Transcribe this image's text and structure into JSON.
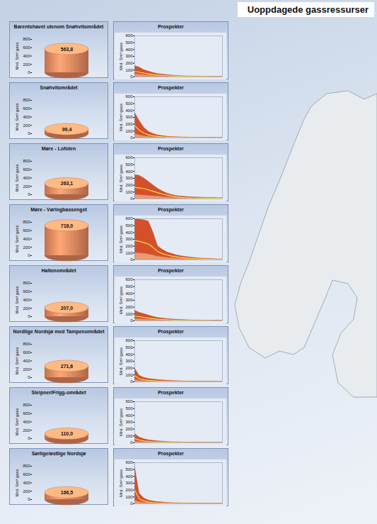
{
  "title": "Uoppdagede gassressurser",
  "chart_data": [
    {
      "type": "bar",
      "title": "Barentshavet utenom Snøhvitområdet",
      "ylabel": "Mrd. Sm³ gass",
      "categories": [
        null
      ],
      "values": [
        563.8
      ],
      "value_labels": [
        "563,8"
      ],
      "data_labels": true,
      "color": "#e8875f",
      "ylim": [
        0,
        800
      ],
      "yticks": [
        0,
        200,
        400,
        600,
        800
      ],
      "tick_labels": "y"
    },
    {
      "type": "area",
      "title": "Prospekter",
      "ylabel": "Mrd. Sm³ gass",
      "x": [
        1,
        2,
        3,
        4,
        5,
        6,
        7,
        8,
        9,
        10,
        11,
        12,
        13,
        14,
        15,
        16,
        17,
        18,
        19,
        20
      ],
      "xlim": [
        1,
        20
      ],
      "ylim": [
        0,
        600
      ],
      "yticks": [
        0,
        100,
        200,
        300,
        400,
        500,
        600
      ],
      "tick_labels": "y",
      "series": [
        {
          "type": "area",
          "color": "#d4502a",
          "values": [
            160,
            140,
            100,
            80,
            60,
            45,
            35,
            28,
            22,
            18,
            14,
            11,
            9,
            7,
            6,
            5,
            4,
            3,
            3,
            2
          ]
        },
        {
          "type": "area",
          "color": "#eb9a72",
          "values": [
            40,
            35,
            28,
            22,
            18,
            14,
            11,
            9,
            7,
            6,
            5,
            4,
            3,
            3,
            2,
            2,
            1,
            1,
            1,
            1
          ]
        },
        {
          "type": "line",
          "color": "#ffd84a",
          "values": [
            80,
            70,
            55,
            45,
            35,
            28,
            22,
            18,
            14,
            11,
            9,
            7,
            6,
            5,
            4,
            3,
            3,
            2,
            2,
            1
          ]
        }
      ]
    },
    {
      "type": "bar",
      "title": "Snøhvitområdet",
      "ylabel": "Mrd. Sm³ gass",
      "categories": [
        null
      ],
      "values": [
        99.4
      ],
      "value_labels": [
        "99,4"
      ],
      "data_labels": true,
      "color": "#e8875f",
      "ylim": [
        0,
        800
      ],
      "yticks": [
        0,
        200,
        400,
        600,
        800
      ],
      "tick_labels": "y"
    },
    {
      "type": "area",
      "title": "Prospekter",
      "ylabel": "Mrd. Sm³ gass",
      "x": [
        1,
        2,
        3,
        4,
        5,
        6,
        7,
        8,
        9,
        10,
        11,
        12,
        13,
        14,
        15,
        16,
        17,
        18,
        19,
        20
      ],
      "xlim": [
        1,
        20
      ],
      "ylim": [
        0,
        600
      ],
      "yticks": [
        0,
        100,
        200,
        300,
        400,
        500,
        600
      ],
      "tick_labels": "y",
      "series": [
        {
          "type": "area",
          "color": "#d4502a",
          "values": [
            370,
            250,
            150,
            90,
            60,
            40,
            28,
            20,
            15,
            12,
            10,
            8,
            6,
            5,
            4,
            3,
            3,
            2,
            2,
            2
          ]
        },
        {
          "type": "area",
          "color": "#eb9a72",
          "values": [
            60,
            40,
            25,
            18,
            12,
            9,
            7,
            5,
            4,
            3,
            3,
            2,
            2,
            1,
            1,
            1,
            1,
            1,
            1,
            1
          ]
        },
        {
          "type": "line",
          "color": "#ffd84a",
          "values": [
            180,
            110,
            70,
            45,
            30,
            22,
            16,
            12,
            9,
            7,
            6,
            5,
            4,
            3,
            3,
            2,
            2,
            1,
            1,
            1
          ]
        }
      ]
    },
    {
      "type": "bar",
      "title": "Møre - Lofoten",
      "ylabel": "Mrd. Sm³ gass",
      "categories": [
        null
      ],
      "values": [
        263.1
      ],
      "value_labels": [
        "263,1"
      ],
      "data_labels": true,
      "color": "#e8875f",
      "ylim": [
        0,
        800
      ],
      "yticks": [
        0,
        200,
        400,
        600,
        800
      ],
      "tick_labels": "y"
    },
    {
      "type": "area",
      "title": "Prospekter",
      "ylabel": "Mrd. Sm³ gass",
      "x": [
        1,
        2,
        3,
        4,
        5,
        6,
        7,
        8,
        9,
        10,
        11,
        12,
        13,
        14,
        15,
        16,
        17,
        18,
        19,
        20
      ],
      "xlim": [
        1,
        20
      ],
      "ylim": [
        0,
        600
      ],
      "yticks": [
        0,
        100,
        200,
        300,
        400,
        500,
        600
      ],
      "tick_labels": "y",
      "series": [
        {
          "type": "area",
          "color": "#d4502a",
          "values": [
            350,
            340,
            300,
            250,
            200,
            150,
            110,
            80,
            60,
            45,
            35,
            30,
            25,
            22,
            20,
            18,
            16,
            15,
            14,
            13
          ]
        },
        {
          "type": "area",
          "color": "#eb9a72",
          "values": [
            60,
            55,
            50,
            45,
            40,
            35,
            28,
            22,
            17,
            13,
            10,
            8,
            7,
            6,
            5,
            5,
            4,
            4,
            4,
            4
          ]
        },
        {
          "type": "line",
          "color": "#ffd84a",
          "values": [
            170,
            160,
            150,
            130,
            110,
            90,
            70,
            55,
            40,
            30,
            22,
            18,
            15,
            13,
            12,
            11,
            10,
            9,
            9,
            8
          ]
        }
      ]
    },
    {
      "type": "bar",
      "title": "Møre - Vøringbassenget",
      "ylabel": "Mrd. Sm³ gass",
      "categories": [
        null
      ],
      "values": [
        718.0
      ],
      "value_labels": [
        "718,0"
      ],
      "data_labels": true,
      "color": "#e8875f",
      "ylim": [
        0,
        800
      ],
      "yticks": [
        0,
        200,
        400,
        600,
        800
      ],
      "tick_labels": "y"
    },
    {
      "type": "area",
      "title": "Prospekter",
      "ylabel": "Mrd. Sm³ gass",
      "x": [
        1,
        2,
        3,
        4,
        5,
        6,
        7,
        8,
        9,
        10,
        11,
        12,
        13,
        14,
        15,
        16,
        17,
        18,
        19,
        20
      ],
      "xlim": [
        1,
        20
      ],
      "ylim": [
        0,
        600
      ],
      "yticks": [
        0,
        100,
        200,
        300,
        400,
        500,
        600
      ],
      "tick_labels": "y",
      "series": [
        {
          "type": "area",
          "color": "#d4502a",
          "values": [
            600,
            590,
            580,
            560,
            400,
            200,
            150,
            110,
            90,
            70,
            55,
            45,
            35,
            28,
            22,
            18,
            15,
            12,
            10,
            8
          ]
        },
        {
          "type": "area",
          "color": "#eb9a72",
          "values": [
            100,
            95,
            90,
            80,
            65,
            50,
            40,
            32,
            26,
            21,
            17,
            14,
            11,
            9,
            7,
            6,
            5,
            4,
            3,
            3
          ]
        },
        {
          "type": "line",
          "color": "#ffd84a",
          "values": [
            280,
            270,
            250,
            230,
            180,
            120,
            90,
            70,
            55,
            45,
            35,
            28,
            22,
            18,
            14,
            11,
            9,
            7,
            6,
            5
          ]
        }
      ]
    },
    {
      "type": "bar",
      "title": "Haltenområdet",
      "ylabel": "Mrd. Sm³ gass",
      "categories": [
        null
      ],
      "values": [
        207.0
      ],
      "value_labels": [
        "207,0"
      ],
      "data_labels": true,
      "color": "#e8875f",
      "ylim": [
        0,
        800
      ],
      "yticks": [
        0,
        200,
        400,
        600,
        800
      ],
      "tick_labels": "y"
    },
    {
      "type": "area",
      "title": "Prospekter",
      "ylabel": "Mrd. Sm³ gass",
      "x": [
        1,
        2,
        3,
        4,
        5,
        6,
        7,
        8,
        9,
        10,
        11,
        12,
        13,
        14,
        15,
        16,
        17,
        18,
        19,
        20
      ],
      "xlim": [
        1,
        20
      ],
      "ylim": [
        0,
        600
      ],
      "yticks": [
        0,
        100,
        200,
        300,
        400,
        500,
        600
      ],
      "tick_labels": "y",
      "series": [
        {
          "type": "area",
          "color": "#d4502a",
          "values": [
            150,
            120,
            100,
            80,
            60,
            45,
            35,
            28,
            22,
            18,
            15,
            12,
            10,
            8,
            7,
            6,
            5,
            4,
            4,
            3
          ]
        },
        {
          "type": "area",
          "color": "#eb9a72",
          "values": [
            30,
            25,
            21,
            17,
            14,
            11,
            9,
            7,
            6,
            5,
            4,
            3,
            3,
            2,
            2,
            2,
            1,
            1,
            1,
            1
          ]
        },
        {
          "type": "line",
          "color": "#ffd84a",
          "values": [
            70,
            60,
            50,
            40,
            32,
            25,
            20,
            16,
            13,
            10,
            8,
            7,
            6,
            5,
            4,
            3,
            3,
            2,
            2,
            2
          ]
        }
      ]
    },
    {
      "type": "bar",
      "title": "Nordlige Nordsjø med Tampenområdet",
      "ylabel": "Mrd. Sm³ gass",
      "categories": [
        null
      ],
      "values": [
        271.6
      ],
      "value_labels": [
        "271,6"
      ],
      "data_labels": true,
      "color": "#e8875f",
      "ylim": [
        0,
        800
      ],
      "yticks": [
        0,
        200,
        400,
        600,
        800
      ],
      "tick_labels": "y"
    },
    {
      "type": "area",
      "title": "Prospekter",
      "ylabel": "Mrd. Sm³ gass",
      "x": [
        1,
        2,
        3,
        4,
        5,
        6,
        7,
        8,
        9,
        10,
        11,
        12,
        13,
        14,
        15,
        16,
        17,
        18,
        19,
        20
      ],
      "xlim": [
        1,
        20
      ],
      "ylim": [
        0,
        600
      ],
      "yticks": [
        0,
        100,
        200,
        300,
        400,
        500,
        600
      ],
      "tick_labels": "y",
      "series": [
        {
          "type": "area",
          "color": "#d4502a",
          "values": [
            200,
            90,
            60,
            45,
            35,
            28,
            22,
            18,
            15,
            12,
            10,
            8,
            7,
            6,
            5,
            4,
            4,
            3,
            3,
            2
          ]
        },
        {
          "type": "area",
          "color": "#eb9a72",
          "values": [
            30,
            18,
            12,
            9,
            7,
            6,
            5,
            4,
            3,
            3,
            2,
            2,
            2,
            1,
            1,
            1,
            1,
            1,
            1,
            1
          ]
        },
        {
          "type": "line",
          "color": "#ffd84a",
          "values": [
            90,
            45,
            30,
            22,
            17,
            13,
            10,
            8,
            7,
            6,
            5,
            4,
            3,
            3,
            2,
            2,
            2,
            1,
            1,
            1
          ]
        }
      ]
    },
    {
      "type": "bar",
      "title": "Sleipner/Frigg-området",
      "ylabel": "Mrd. Sm³ gass",
      "categories": [
        null
      ],
      "values": [
        110.0
      ],
      "value_labels": [
        "110,0"
      ],
      "data_labels": true,
      "color": "#e8875f",
      "ylim": [
        0,
        800
      ],
      "yticks": [
        0,
        200,
        400,
        600,
        800
      ],
      "tick_labels": "y"
    },
    {
      "type": "area",
      "title": "Prospekter",
      "ylabel": "Mrd. Sm³ gass",
      "x": [
        1,
        2,
        3,
        4,
        5,
        6,
        7,
        8,
        9,
        10,
        11,
        12,
        13,
        14,
        15,
        16,
        17,
        18,
        19,
        20
      ],
      "xlim": [
        1,
        20
      ],
      "ylim": [
        0,
        600
      ],
      "yticks": [
        0,
        100,
        200,
        300,
        400,
        500,
        600
      ],
      "tick_labels": "y",
      "series": [
        {
          "type": "area",
          "color": "#d4502a",
          "values": [
            130,
            80,
            55,
            40,
            30,
            24,
            18,
            14,
            11,
            9,
            7,
            6,
            5,
            4,
            3,
            3,
            2,
            2,
            2,
            1
          ]
        },
        {
          "type": "area",
          "color": "#eb9a72",
          "values": [
            20,
            14,
            10,
            8,
            6,
            5,
            4,
            3,
            3,
            2,
            2,
            2,
            1,
            1,
            1,
            1,
            1,
            1,
            1,
            1
          ]
        },
        {
          "type": "line",
          "color": "#ffd84a",
          "values": [
            60,
            40,
            28,
            20,
            15,
            12,
            9,
            7,
            6,
            5,
            4,
            3,
            3,
            2,
            2,
            2,
            1,
            1,
            1,
            1
          ]
        }
      ]
    },
    {
      "type": "bar",
      "title": "Sørlige/østlige Nordsjø",
      "ylabel": "Mrd. Sm³ gass",
      "categories": [
        null
      ],
      "values": [
        166.5
      ],
      "value_labels": [
        "166,5"
      ],
      "data_labels": true,
      "color": "#e8875f",
      "ylim": [
        0,
        800
      ],
      "yticks": [
        0,
        200,
        400,
        600,
        800
      ],
      "tick_labels": "y"
    },
    {
      "type": "area",
      "title": "Prospekter",
      "ylabel": "Mrd. Sm³ gass",
      "x": [
        1,
        2,
        3,
        4,
        5,
        6,
        7,
        8,
        9,
        10,
        11,
        12,
        13,
        14,
        15,
        16,
        17,
        18,
        19,
        20
      ],
      "xlim": [
        1,
        20
      ],
      "ylim": [
        0,
        600
      ],
      "yticks": [
        0,
        100,
        200,
        300,
        400,
        500,
        600
      ],
      "tick_labels": "y",
      "series": [
        {
          "type": "area",
          "color": "#d4502a",
          "values": [
            550,
            150,
            80,
            50,
            35,
            25,
            20,
            15,
            12,
            10,
            8,
            7,
            6,
            5,
            4,
            3,
            3,
            2,
            2,
            2
          ]
        },
        {
          "type": "area",
          "color": "#eb9a72",
          "values": [
            50,
            25,
            15,
            10,
            7,
            5,
            4,
            3,
            3,
            2,
            2,
            2,
            1,
            1,
            1,
            1,
            1,
            1,
            1,
            1
          ]
        },
        {
          "type": "line",
          "color": "#ffd84a",
          "values": [
            200,
            70,
            40,
            25,
            18,
            13,
            10,
            8,
            6,
            5,
            4,
            3,
            3,
            2,
            2,
            2,
            1,
            1,
            1,
            1
          ]
        }
      ]
    }
  ]
}
